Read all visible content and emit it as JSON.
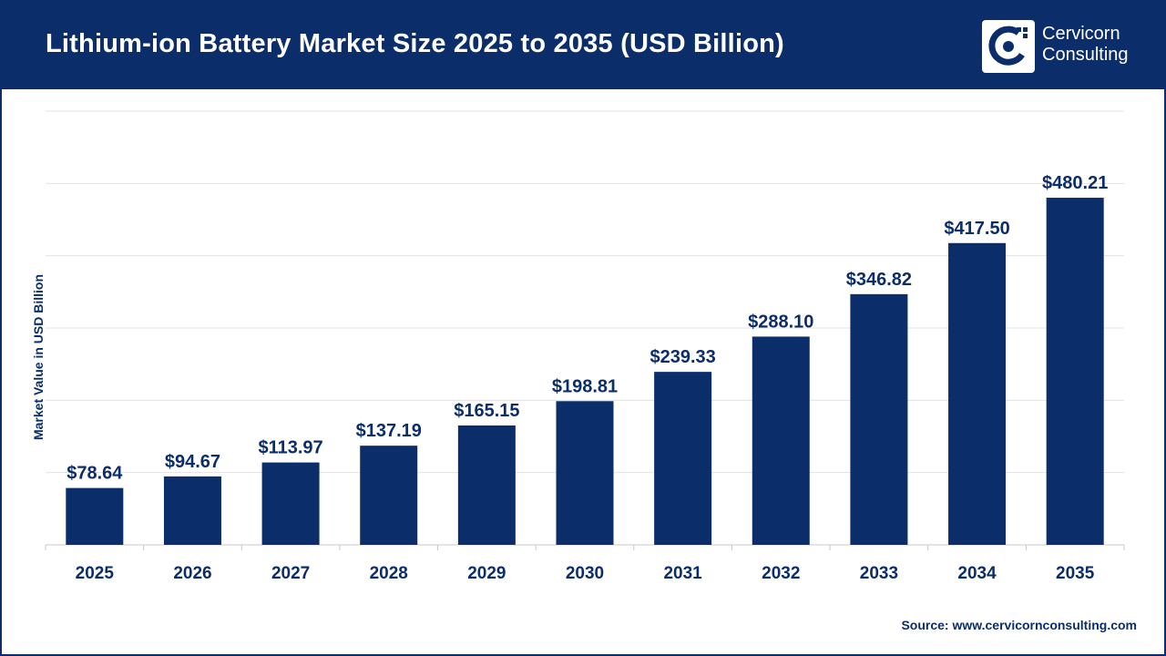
{
  "header": {
    "title": "Lithium-ion Battery Market Size 2025 to 2035 (USD Billion)",
    "logo_line1": "Cervicorn",
    "logo_line2": "Consulting",
    "background_color": "#0b2e6b"
  },
  "source": "Source: www.cervicornconsulting.com",
  "chart_data": {
    "type": "bar",
    "title": "Lithium-ion Battery Market Size 2025 to 2035 (USD Billion)",
    "xlabel": "",
    "ylabel": "Market Value in USD Billion",
    "categories": [
      "2025",
      "2026",
      "2027",
      "2028",
      "2029",
      "2030",
      "2031",
      "2032",
      "2033",
      "2034",
      "2035"
    ],
    "values": [
      78.64,
      94.67,
      113.97,
      137.19,
      165.15,
      198.81,
      239.33,
      288.1,
      346.82,
      417.5,
      480.21
    ],
    "data_labels": [
      "$78.64",
      "$94.67",
      "$113.97",
      "$137.19",
      "$165.15",
      "$198.81",
      "$239.33",
      "$288.10",
      "$346.82",
      "$417.50",
      "$480.21"
    ],
    "ylim": [
      0,
      600
    ],
    "grid": true,
    "legend": "none",
    "bar_color": "#0b2e6b"
  }
}
